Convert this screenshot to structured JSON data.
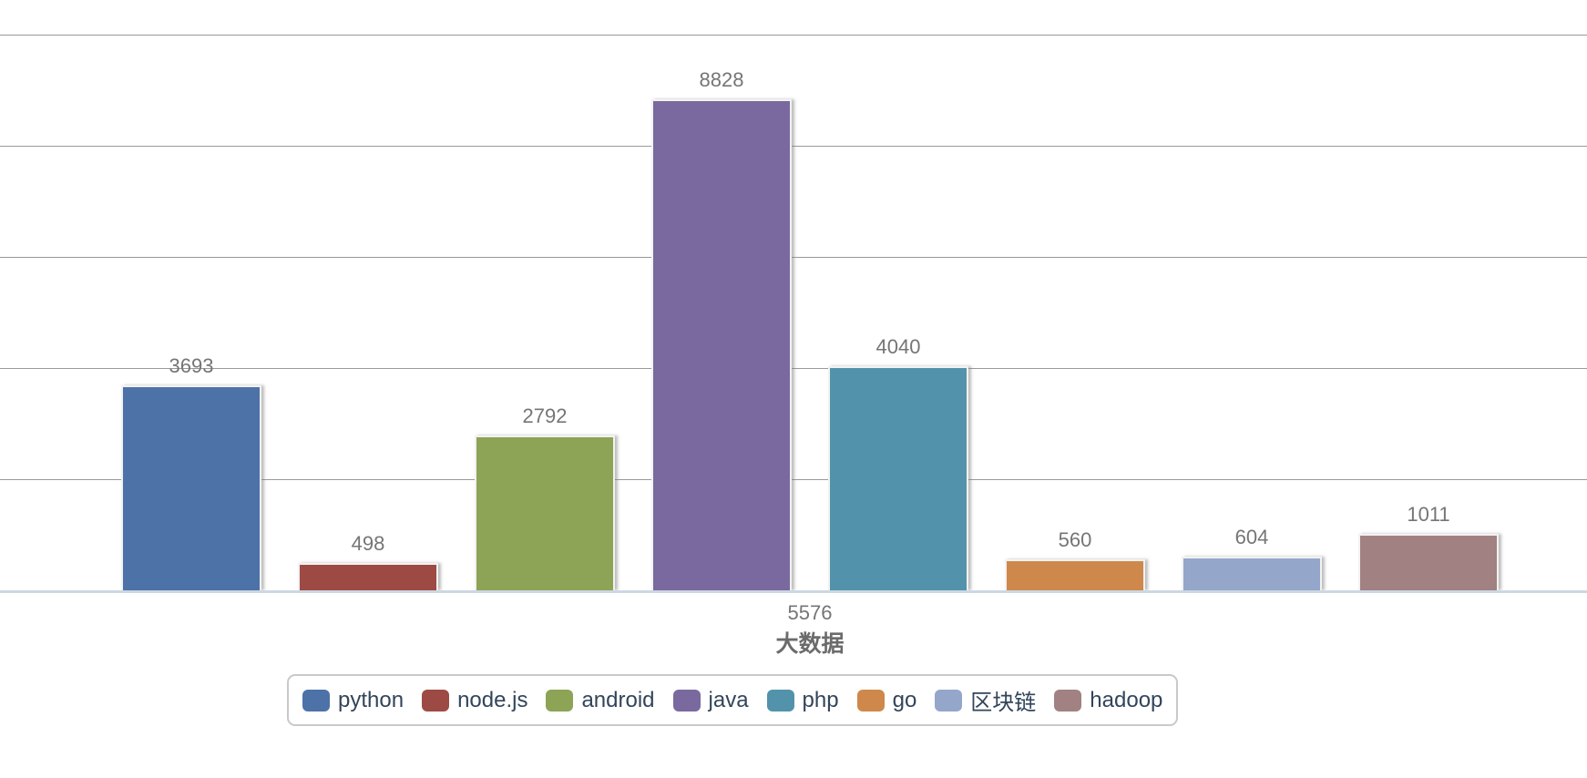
{
  "chart_data": {
    "type": "bar",
    "title": "",
    "categories": [
      "大数据"
    ],
    "category_label": "大数据",
    "category_extra_label": "5576",
    "series": [
      {
        "name": "python",
        "value": 3693,
        "color": "#4d72a7"
      },
      {
        "name": "node.js",
        "value": 498,
        "color": "#9e4a44"
      },
      {
        "name": "android",
        "value": 2792,
        "color": "#8da356"
      },
      {
        "name": "java",
        "value": 8828,
        "color": "#7a699e"
      },
      {
        "name": "php",
        "value": 4040,
        "color": "#5293ab"
      },
      {
        "name": "go",
        "value": 560,
        "color": "#cf884c"
      },
      {
        "name": "区块链",
        "value": 604,
        "color": "#94a6ca"
      },
      {
        "name": "hadoop",
        "value": 1011,
        "color": "#a18181"
      }
    ],
    "value_labels_shown": true,
    "xlabel": "大数据",
    "ylabel": "",
    "ylim": [
      0,
      10000
    ],
    "y_interval": 2000,
    "y_tick_labels_shown": false,
    "grid": true,
    "gridline_color": "#999999",
    "axis_line_color": "#ccd7e3",
    "legend_position": "bottom",
    "legend_labels": [
      "python",
      "node.js",
      "android",
      "java",
      "php",
      "go",
      "区块链",
      "hadoop"
    ]
  }
}
